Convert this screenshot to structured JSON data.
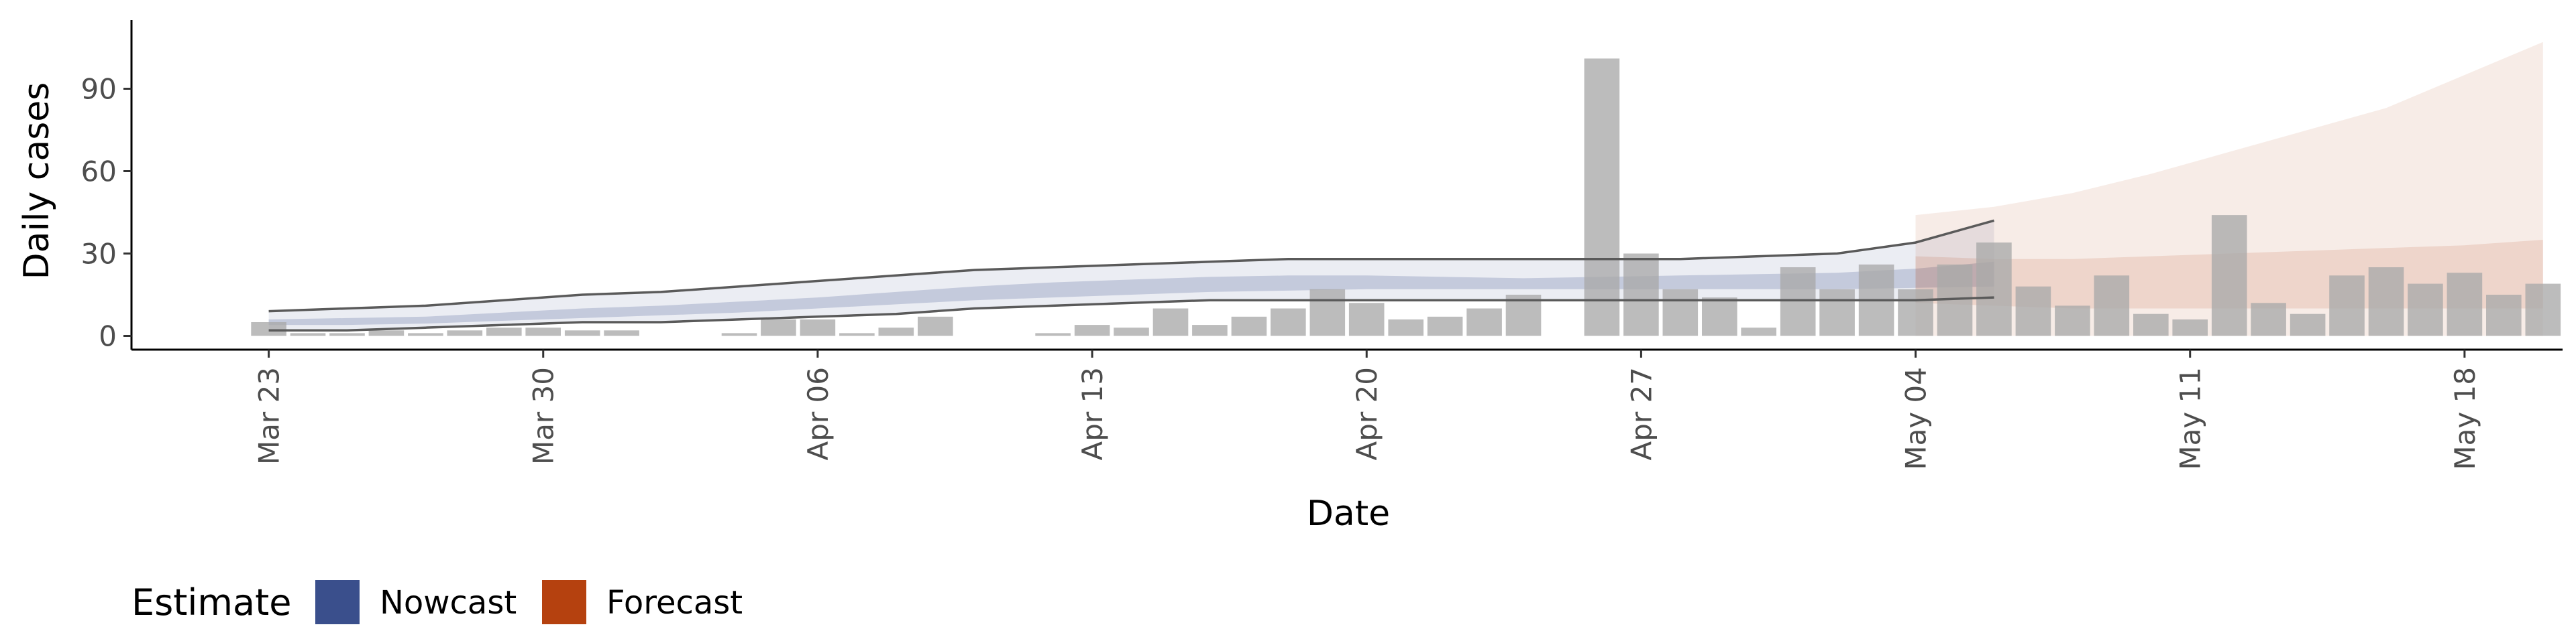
{
  "chart_data": {
    "type": "bar",
    "title": "",
    "xlabel": "Date",
    "ylabel": "Daily cases",
    "ylim": [
      -5,
      115
    ],
    "yticks": [
      0,
      30,
      60,
      90
    ],
    "x_start_date": "2020-03-23",
    "xtick_labels": [
      "Mar 23",
      "Mar 30",
      "Apr 06",
      "Apr 13",
      "Apr 20",
      "Apr 27",
      "May 04",
      "May 11",
      "May 18"
    ],
    "xtick_day_index": [
      0,
      7,
      14,
      21,
      28,
      35,
      42,
      49,
      56
    ],
    "xlim_day_index": [
      -3.5,
      58.5
    ],
    "grid": false,
    "legend": {
      "title": "Estimate",
      "position": "bottom-left",
      "entries": [
        {
          "label": "Nowcast",
          "color": "#3a4f8c"
        },
        {
          "label": "Forecast",
          "color": "#b5410f"
        }
      ]
    },
    "reported_cases": {
      "comment_unused": "",
      "values": [
        5,
        1,
        1,
        2,
        1,
        2,
        3,
        3,
        2,
        2,
        0,
        0,
        1,
        6,
        6,
        1,
        3,
        7,
        0,
        0,
        1,
        4,
        3,
        10,
        4,
        7,
        10,
        17,
        12,
        6,
        7,
        10,
        15,
        0,
        101,
        30,
        17,
        14,
        3,
        25,
        17,
        26,
        17,
        26,
        34,
        18,
        11,
        22,
        8,
        6,
        44,
        12,
        8,
        22,
        25,
        19,
        23,
        15,
        19
      ]
    },
    "series": [
      {
        "name": "Nowcast",
        "color": "#3a4f8c",
        "x": [
          0,
          2,
          4,
          6,
          8,
          10,
          12,
          14,
          16,
          18,
          20,
          22,
          24,
          26,
          28,
          30,
          32,
          34,
          36,
          38,
          40,
          42,
          44
        ],
        "upper90": [
          9,
          10,
          11,
          13,
          15,
          16,
          18,
          20,
          22,
          24,
          25,
          26,
          27,
          28,
          28,
          28,
          28,
          28,
          28,
          29,
          30,
          34,
          42
        ],
        "lower90": [
          2,
          2,
          3,
          4,
          5,
          5,
          6,
          7,
          8,
          10,
          11,
          12,
          13,
          13,
          13,
          13,
          13,
          13,
          13,
          13,
          13,
          13,
          14
        ],
        "upper50": [
          6,
          6.5,
          7,
          8.5,
          10,
          11,
          12.5,
          14,
          16,
          18,
          19.5,
          20.5,
          21.5,
          22,
          22,
          21.5,
          21,
          21.5,
          22,
          22.5,
          23,
          24.5,
          27
        ],
        "lower50": [
          4,
          4,
          4.5,
          5.5,
          6.5,
          7.5,
          8.5,
          10,
          11.5,
          13,
          14,
          15,
          16,
          16.5,
          17,
          17,
          17,
          17,
          17,
          17,
          17,
          17.5,
          18
        ]
      },
      {
        "name": "Forecast",
        "color": "#b5410f",
        "x": [
          42,
          44,
          46,
          48,
          50,
          52,
          54,
          56,
          58
        ],
        "upper90": [
          44,
          47,
          52,
          59,
          67,
          75,
          83,
          95,
          107
        ],
        "lower90": [
          0,
          0,
          0,
          0,
          0,
          0,
          0,
          0,
          0
        ],
        "upper50": [
          29,
          28,
          28,
          29,
          30,
          31,
          32,
          33,
          35
        ],
        "lower50": [
          12,
          11,
          10,
          10,
          10,
          10,
          10,
          10,
          10
        ]
      }
    ],
    "forecast_horizon_line_day_index": 59
  }
}
